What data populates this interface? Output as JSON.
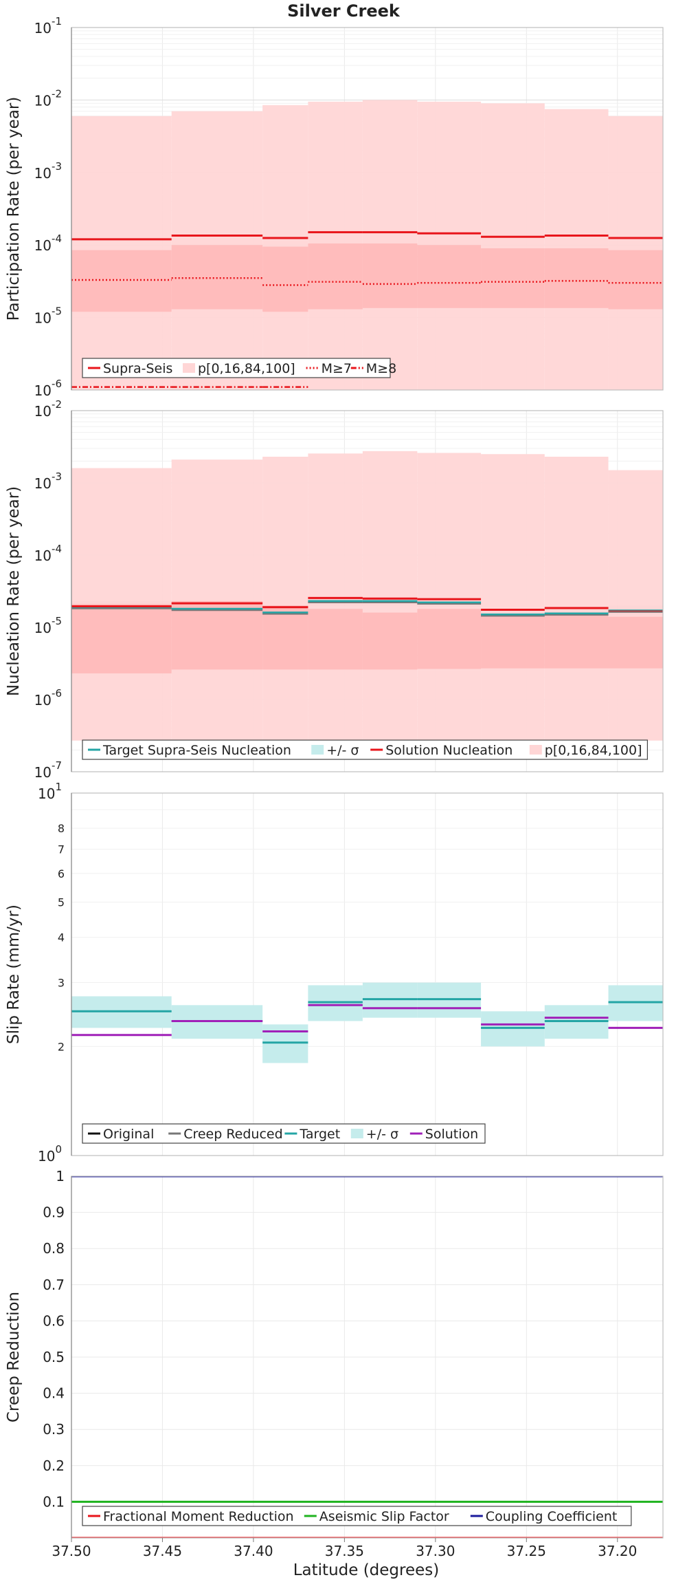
{
  "title": "Silver Creek",
  "xlabel": "Latitude (degrees)",
  "x_ticks": [
    "37.50",
    "37.45",
    "37.40",
    "37.35",
    "37.30",
    "37.25",
    "37.20"
  ],
  "colors": {
    "red": "#e8151b",
    "band": "#ffd6d6",
    "band_dark": "#ffb0b0",
    "teal": "#24a5a5",
    "teal_band": "#c5ecec",
    "gray": "#777777",
    "magenta": "#a020b8",
    "green": "#1fb31f",
    "navy": "#1a1a9c",
    "black": "#111111",
    "grid": "#e9e9e9"
  },
  "chart_data": [
    {
      "type": "line",
      "title": "Silver Creek",
      "ylabel": "Participation Rate (per year)",
      "yscale": "log",
      "ylim": [
        1e-06,
        0.1
      ],
      "y_ticks": [
        {
          "base": "10",
          "exp": "-6"
        },
        {
          "base": "10",
          "exp": "-5"
        },
        {
          "base": "10",
          "exp": "-4"
        },
        {
          "base": "10",
          "exp": "-3"
        },
        {
          "base": "10",
          "exp": "-2"
        },
        {
          "base": "10",
          "exp": "-1"
        }
      ],
      "xlim": [
        37.5,
        37.175
      ],
      "segments_lat": [
        37.5,
        37.445,
        37.395,
        37.37,
        37.34,
        37.31,
        37.275,
        37.24,
        37.205,
        37.175
      ],
      "series": [
        {
          "name": "Supra-Seis",
          "style": "solid",
          "values": [
            0.00012,
            0.000135,
            0.000125,
            0.00015,
            0.00015,
            0.000145,
            0.00013,
            0.000135,
            0.000125
          ]
        },
        {
          "name": "M≥7",
          "style": "dotted",
          "values": [
            3.3e-05,
            3.5e-05,
            2.8e-05,
            3.1e-05,
            2.9e-05,
            3e-05,
            3.1e-05,
            3.2e-05,
            3e-05
          ]
        },
        {
          "name": "M≥8",
          "style": "dashdot",
          "values": [
            1.1e-06,
            1.1e-06,
            1.1e-06,
            null,
            null,
            null,
            null,
            null,
            null
          ]
        }
      ],
      "bands": [
        {
          "name": "p[0,16,84,100]",
          "outer_low": [
            2e-07,
            2e-07,
            2e-07,
            2e-07,
            2e-07,
            2e-07,
            2e-07,
            2e-07,
            2e-07
          ],
          "outer_high": [
            0.006,
            0.007,
            0.0085,
            0.0095,
            0.01,
            0.0095,
            0.009,
            0.0075,
            0.006
          ],
          "inner_low": [
            1.2e-05,
            1.3e-05,
            1.2e-05,
            1.3e-05,
            1.35e-05,
            1.35e-05,
            1.35e-05,
            1.35e-05,
            1.3e-05
          ],
          "inner_high": [
            8.5e-05,
            0.0001,
            9.5e-05,
            0.000105,
            0.000105,
            0.0001,
            9e-05,
            9e-05,
            8.5e-05
          ]
        }
      ],
      "legend": {
        "position": "bottom-left",
        "entries": [
          "Supra-Seis",
          "p[0,16,84,100]",
          "M≥7",
          "M≥8"
        ]
      }
    },
    {
      "type": "line",
      "ylabel": "Nucleation Rate (per year)",
      "yscale": "log",
      "ylim": [
        1e-07,
        0.01
      ],
      "y_ticks": [
        {
          "base": "10",
          "exp": "-7"
        },
        {
          "base": "10",
          "exp": "-6"
        },
        {
          "base": "10",
          "exp": "-5"
        },
        {
          "base": "10",
          "exp": "-4"
        },
        {
          "base": "10",
          "exp": "-3"
        },
        {
          "base": "10",
          "exp": "-2"
        }
      ],
      "xlim": [
        37.5,
        37.175
      ],
      "segments_lat": [
        37.5,
        37.445,
        37.395,
        37.37,
        37.34,
        37.31,
        37.275,
        37.24,
        37.205,
        37.175
      ],
      "series": [
        {
          "name": "Target Supra-Seis Nucleation",
          "color": "teal",
          "values": [
            1.9e-05,
            1.8e-05,
            1.6e-05,
            2.3e-05,
            2.3e-05,
            2.2e-05,
            1.5e-05,
            1.55e-05,
            1.7e-05
          ]
        },
        {
          "name": "Solution Nucleation",
          "color": "red",
          "values": [
            1.95e-05,
            2.15e-05,
            1.9e-05,
            2.55e-05,
            2.5e-05,
            2.45e-05,
            1.75e-05,
            1.85e-05,
            1.65e-05
          ]
        }
      ],
      "bands": [
        {
          "name": "+/- σ",
          "low": [
            1.6e-05,
            1.55e-05,
            1.4e-05,
            2e-05,
            2e-05,
            1.9e-05,
            1.3e-05,
            1.35e-05,
            1.45e-05
          ],
          "high": [
            2.3e-05,
            2.1e-05,
            1.85e-05,
            2.65e-05,
            2.6e-05,
            2.55e-05,
            1.7e-05,
            1.8e-05,
            2e-05
          ]
        },
        {
          "name": "p[0,16,84,100]",
          "outer_low": [
            2.7e-07,
            2.7e-07,
            2.7e-07,
            2.7e-07,
            2.7e-07,
            2.7e-07,
            2.7e-07,
            2.7e-07,
            2.7e-07
          ],
          "outer_high": [
            0.0016,
            0.0021,
            0.0023,
            0.00255,
            0.00275,
            0.0026,
            0.0025,
            0.0023,
            0.0015
          ],
          "inner_low": [
            2.3e-06,
            2.6e-06,
            2.6e-06,
            2.6e-06,
            2.6e-06,
            2.65e-06,
            2.7e-06,
            2.7e-06,
            2.7e-06
          ],
          "inner_high": [
            2.1e-05,
            2.3e-05,
            2e-05,
            1.8e-05,
            1.6e-05,
            1.8e-05,
            1.4e-05,
            1.5e-05,
            1.4e-05
          ]
        }
      ],
      "legend": {
        "position": "bottom-left",
        "entries": [
          "Target Supra-Seis Nucleation",
          "+/- σ",
          "Solution Nucleation",
          "p[0,16,84,100]"
        ]
      }
    },
    {
      "type": "line",
      "ylabel": "Slip Rate (mm/yr)",
      "yscale": "log",
      "ylim": [
        1,
        10
      ],
      "y_ticks": [
        {
          "base": "10",
          "exp": "1"
        },
        {
          "base": "10",
          "exp": "0"
        }
      ],
      "y_minor_labels": [
        "2",
        "3",
        "4",
        "5",
        "6",
        "7",
        "8"
      ],
      "xlim": [
        37.5,
        37.175
      ],
      "segments_lat": [
        37.5,
        37.445,
        37.395,
        37.37,
        37.34,
        37.31,
        37.275,
        37.24,
        37.205,
        37.175
      ],
      "series": [
        {
          "name": "Target",
          "color": "teal",
          "values": [
            2.5,
            2.35,
            2.05,
            2.65,
            2.7,
            2.7,
            2.25,
            2.35,
            2.65
          ]
        },
        {
          "name": "Solution",
          "color": "magenta",
          "values": [
            2.15,
            2.35,
            2.2,
            2.6,
            2.55,
            2.55,
            2.3,
            2.4,
            2.25
          ]
        }
      ],
      "bands": [
        {
          "name": "+/- σ",
          "low": [
            2.25,
            2.1,
            1.8,
            2.35,
            2.4,
            2.4,
            2.0,
            2.1,
            2.35
          ],
          "high": [
            2.75,
            2.6,
            2.3,
            2.95,
            3.0,
            3.0,
            2.5,
            2.6,
            2.95
          ]
        }
      ],
      "legend": {
        "position": "bottom-left",
        "entries": [
          "Original",
          "Creep Reduced",
          "Target",
          "+/- σ",
          "Solution"
        ]
      }
    },
    {
      "type": "line",
      "ylabel": "Creep Reduction",
      "yscale": "linear",
      "ylim": [
        0,
        1
      ],
      "y_ticks": [
        "0.1",
        "0.2",
        "0.3",
        "0.4",
        "0.5",
        "0.6",
        "0.7",
        "0.8",
        "0.9",
        "1"
      ],
      "xlim": [
        37.5,
        37.175
      ],
      "series": [
        {
          "name": "Fractional Moment Reduction",
          "color": "red",
          "values": [
            0,
            0
          ]
        },
        {
          "name": "Aseismic Slip Factor",
          "color": "green",
          "values": [
            0.1,
            0.1
          ]
        },
        {
          "name": "Coupling Coefficient",
          "color": "navy",
          "values": [
            1.0,
            1.0
          ]
        }
      ],
      "legend": {
        "position": "bottom-left",
        "entries": [
          "Fractional Moment Reduction",
          "Aseismic Slip Factor",
          "Coupling Coefficient"
        ]
      }
    }
  ]
}
